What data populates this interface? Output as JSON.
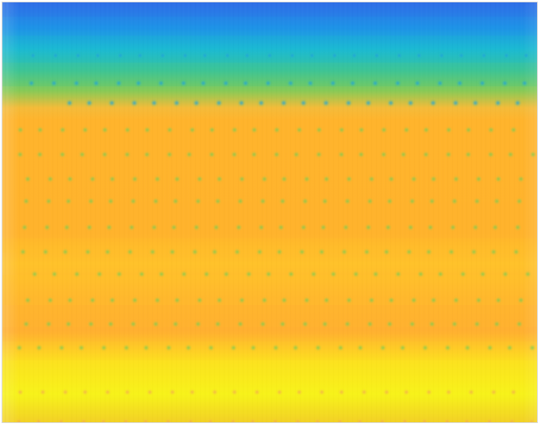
{
  "image": {
    "palette": {
      "deep_blue": "#2f6fe8",
      "blue": "#1e93e8",
      "cyan": "#1bb9d5",
      "teal": "#38c59c",
      "green": "#7ecb5a",
      "orange": "#ffb42c",
      "yellow": "#f7f21a",
      "white": "#ffffff"
    }
  }
}
